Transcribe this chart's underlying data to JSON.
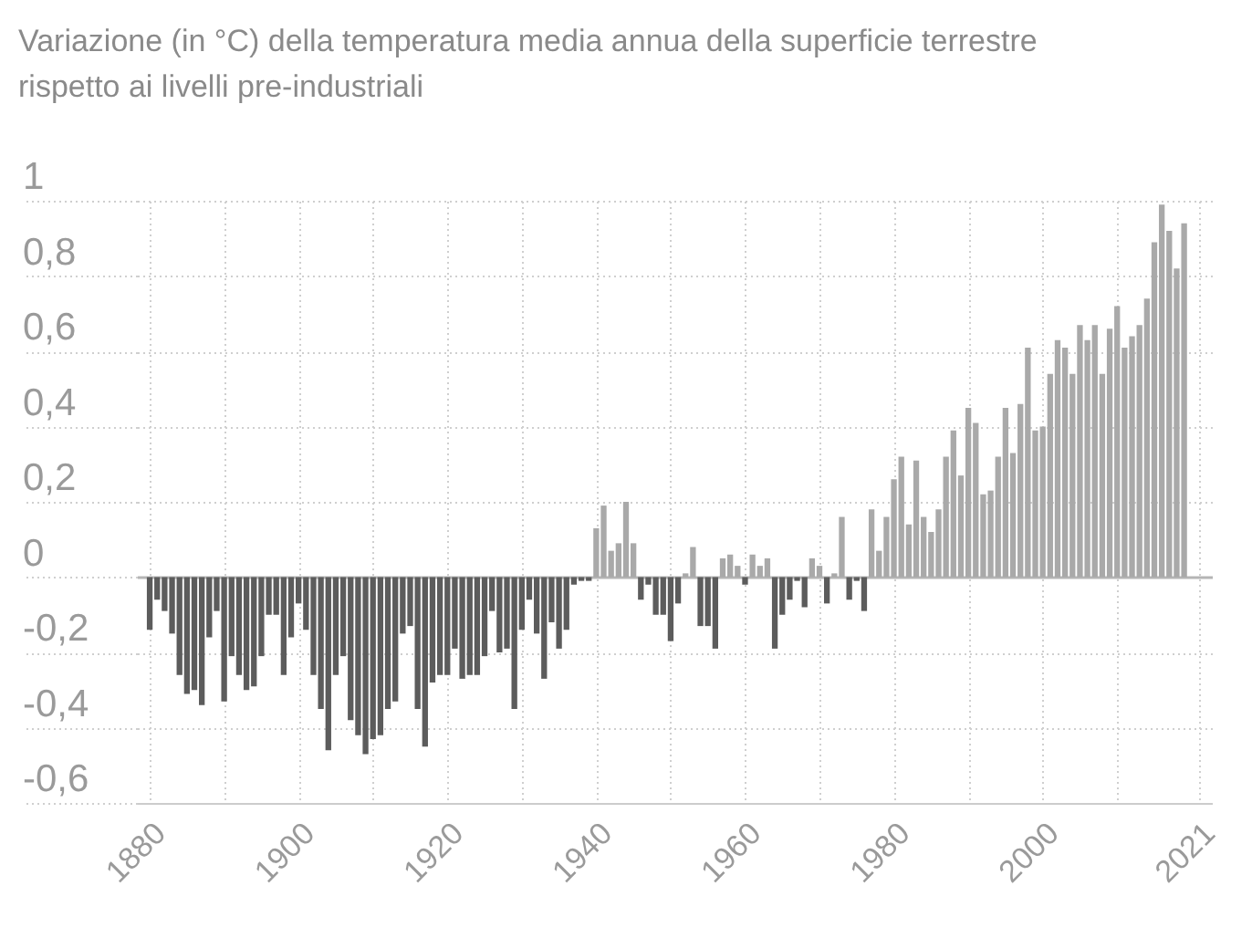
{
  "chart_data": {
    "type": "bar",
    "title": "Variazione (in °C) della temperatura media annua della superficie terrestre rispetto ai livelli pre-industriali",
    "x": [
      1880,
      1881,
      1882,
      1883,
      1884,
      1885,
      1886,
      1887,
      1888,
      1889,
      1890,
      1891,
      1892,
      1893,
      1894,
      1895,
      1896,
      1897,
      1898,
      1899,
      1900,
      1901,
      1902,
      1903,
      1904,
      1905,
      1906,
      1907,
      1908,
      1909,
      1910,
      1911,
      1912,
      1913,
      1914,
      1915,
      1916,
      1917,
      1918,
      1919,
      1920,
      1921,
      1922,
      1923,
      1924,
      1925,
      1926,
      1927,
      1928,
      1929,
      1930,
      1931,
      1932,
      1933,
      1934,
      1935,
      1936,
      1937,
      1938,
      1939,
      1940,
      1941,
      1942,
      1943,
      1944,
      1945,
      1946,
      1947,
      1948,
      1949,
      1950,
      1951,
      1952,
      1953,
      1954,
      1955,
      1956,
      1957,
      1958,
      1959,
      1960,
      1961,
      1962,
      1963,
      1964,
      1965,
      1966,
      1967,
      1968,
      1969,
      1970,
      1971,
      1972,
      1973,
      1974,
      1975,
      1976,
      1977,
      1978,
      1979,
      1980,
      1981,
      1982,
      1983,
      1984,
      1985,
      1986,
      1987,
      1988,
      1989,
      1990,
      1991,
      1992,
      1993,
      1994,
      1995,
      1996,
      1997,
      1998,
      1999,
      2000,
      2001,
      2002,
      2003,
      2004,
      2005,
      2006,
      2007,
      2008,
      2009,
      2010,
      2011,
      2012,
      2013,
      2014,
      2015,
      2016,
      2017,
      2018,
      2019
    ],
    "values": [
      -0.14,
      -0.06,
      -0.09,
      -0.15,
      -0.26,
      -0.31,
      -0.3,
      -0.34,
      -0.16,
      -0.09,
      -0.33,
      -0.21,
      -0.26,
      -0.3,
      -0.29,
      -0.21,
      -0.1,
      -0.1,
      -0.26,
      -0.16,
      -0.07,
      -0.14,
      -0.26,
      -0.35,
      -0.46,
      -0.26,
      -0.21,
      -0.38,
      -0.42,
      -0.47,
      -0.43,
      -0.42,
      -0.35,
      -0.33,
      -0.15,
      -0.13,
      -0.35,
      -0.45,
      -0.28,
      -0.26,
      -0.26,
      -0.19,
      -0.27,
      -0.26,
      -0.26,
      -0.21,
      -0.09,
      -0.2,
      -0.19,
      -0.35,
      -0.14,
      -0.06,
      -0.15,
      -0.27,
      -0.12,
      -0.19,
      -0.14,
      -0.02,
      -0.01,
      -0.01,
      0.13,
      0.19,
      0.07,
      0.09,
      0.2,
      0.09,
      -0.06,
      -0.02,
      -0.1,
      -0.1,
      -0.17,
      -0.07,
      0.01,
      0.08,
      -0.13,
      -0.13,
      -0.19,
      0.05,
      0.06,
      0.03,
      -0.02,
      0.06,
      0.03,
      0.05,
      -0.19,
      -0.1,
      -0.06,
      -0.01,
      -0.08,
      0.05,
      0.03,
      -0.07,
      0.01,
      0.16,
      -0.06,
      -0.01,
      -0.09,
      0.18,
      0.07,
      0.16,
      0.26,
      0.32,
      0.14,
      0.31,
      0.16,
      0.12,
      0.18,
      0.32,
      0.39,
      0.27,
      0.45,
      0.41,
      0.22,
      0.23,
      0.32,
      0.45,
      0.33,
      0.46,
      0.61,
      0.39,
      0.4,
      0.54,
      0.63,
      0.61,
      0.54,
      0.67,
      0.63,
      0.67,
      0.54,
      0.66,
      0.72,
      0.61,
      0.64,
      0.67,
      0.74,
      0.89,
      0.99,
      0.92,
      0.82,
      0.94
    ],
    "colors": [
      "#5c5c5c",
      "#5c5c5c",
      "#5c5c5c",
      "#5c5c5c",
      "#5c5c5c",
      "#5c5c5c",
      "#5c5c5c",
      "#5c5c5c",
      "#5c5c5c",
      "#5c5c5c",
      "#5c5c5c",
      "#5c5c5c",
      "#5c5c5c",
      "#5c5c5c",
      "#5c5c5c",
      "#5c5c5c",
      "#5c5c5c",
      "#5c5c5c",
      "#5c5c5c",
      "#5c5c5c",
      "#5c5c5c",
      "#5c5c5c",
      "#5c5c5c",
      "#5c5c5c",
      "#5c5c5c",
      "#5c5c5c",
      "#5c5c5c",
      "#5c5c5c",
      "#5c5c5c",
      "#5c5c5c",
      "#5c5c5c",
      "#5c5c5c",
      "#5c5c5c",
      "#5c5c5c",
      "#5c5c5c",
      "#5c5c5c",
      "#5c5c5c",
      "#5c5c5c",
      "#5c5c5c",
      "#5c5c5c",
      "#5c5c5c",
      "#5c5c5c",
      "#5c5c5c",
      "#5c5c5c",
      "#5c5c5c",
      "#5c5c5c",
      "#5c5c5c",
      "#5c5c5c",
      "#5c5c5c",
      "#5c5c5c",
      "#5c5c5c",
      "#5c5c5c",
      "#5c5c5c",
      "#5c5c5c",
      "#5c5c5c",
      "#5c5c5c",
      "#5c5c5c",
      "#5c5c5c",
      "#5c5c5c",
      "#5c5c5c",
      "#a9a9a9",
      "#a9a9a9",
      "#a9a9a9",
      "#a9a9a9",
      "#a9a9a9",
      "#a9a9a9",
      "#5c5c5c",
      "#5c5c5c",
      "#5c5c5c",
      "#5c5c5c",
      "#5c5c5c",
      "#5c5c5c",
      "#a9a9a9",
      "#a9a9a9",
      "#5c5c5c",
      "#5c5c5c",
      "#5c5c5c",
      "#a9a9a9",
      "#a9a9a9",
      "#a9a9a9",
      "#5c5c5c",
      "#a9a9a9",
      "#a9a9a9",
      "#a9a9a9",
      "#5c5c5c",
      "#5c5c5c",
      "#5c5c5c",
      "#5c5c5c",
      "#5c5c5c",
      "#a9a9a9",
      "#a9a9a9",
      "#5c5c5c",
      "#a9a9a9",
      "#a9a9a9",
      "#5c5c5c",
      "#5c5c5c",
      "#5c5c5c",
      "#a9a9a9",
      "#a9a9a9",
      "#a9a9a9",
      "#a9a9a9",
      "#a9a9a9",
      "#a9a9a9",
      "#a9a9a9",
      "#a9a9a9",
      "#a9a9a9",
      "#a9a9a9",
      "#a9a9a9",
      "#a9a9a9",
      "#a9a9a9",
      "#a9a9a9",
      "#a9a9a9",
      "#a9a9a9",
      "#a9a9a9",
      "#a9a9a9",
      "#a9a9a9",
      "#a9a9a9",
      "#a9a9a9",
      "#a9a9a9",
      "#a9a9a9",
      "#a9a9a9",
      "#a9a9a9",
      "#a9a9a9",
      "#a9a9a9",
      "#a9a9a9",
      "#a9a9a9",
      "#a9a9a9",
      "#a9a9a9",
      "#a9a9a9",
      "#a9a9a9",
      "#a9a9a9",
      "#a9a9a9",
      "#a9a9a9",
      "#a9a9a9",
      "#a9a9a9",
      "#a9a9a9",
      "#a9a9a9",
      "#a9a9a9",
      "#a9a9a9",
      "#a9a9a9"
    ],
    "xlim": [
      1879.5,
      2021.5
    ],
    "xticks": [
      1880,
      {
        "value": 1890,
        "label": null
      },
      1900,
      {
        "value": 1910,
        "label": null
      },
      1920,
      {
        "value": 1930,
        "label": null
      },
      1940,
      {
        "value": 1950,
        "label": null
      },
      1960,
      {
        "value": 1970,
        "label": null
      },
      1980,
      {
        "value": 1990,
        "label": null
      },
      2000,
      {
        "value": 2010,
        "label": null
      },
      2021
    ],
    "ylim": [
      -0.6,
      1
    ],
    "yticks": [
      {
        "value": -0.6,
        "label": "-0,6"
      },
      {
        "value": -0.4,
        "label": "-0,4"
      },
      {
        "value": -0.2,
        "label": "-0,2"
      },
      0,
      {
        "value": 0.2,
        "label": "0,2"
      },
      {
        "value": 0.4,
        "label": "0,4"
      },
      {
        "value": 0.6,
        "label": "0,6"
      },
      {
        "value": 0.8,
        "label": "0,8"
      },
      1
    ],
    "grid": true
  }
}
